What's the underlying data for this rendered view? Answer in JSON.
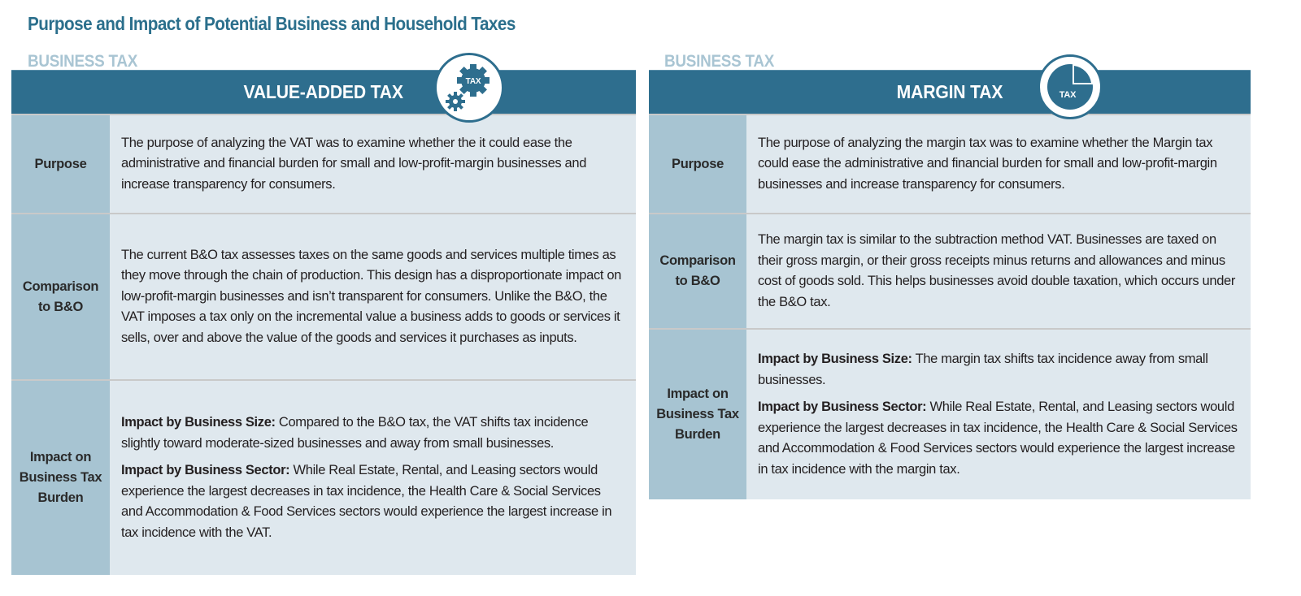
{
  "title": "Purpose and Impact of Potential Business and Household Taxes",
  "tables": [
    {
      "section": "BUSINESS TAX",
      "header": "VALUE-ADDED TAX",
      "icon_text": "TAX",
      "rows": [
        {
          "label": "Purpose",
          "text": "The purpose of analyzing the VAT was to examine whether the it could ease the administrative and financial burden for small and low-profit-margin businesses and increase transparency for consumers."
        },
        {
          "label": "Comparison to B&O",
          "text": "The current B&O tax assesses taxes on the same goods and services multiple times as they move through the chain of production. This design has a disproportionate impact on low-profit-margin businesses and isn’t transparent for consumers. Unlike the B&O, the VAT imposes a tax only on the incremental value a business adds to goods or services it sells, over and above the value of the goods and services it purchases as inputs."
        },
        {
          "label": "Impact on Business Tax Burden",
          "size_label": "Impact by Business Size:",
          "size_text": " Compared to the B&O tax, the VAT shifts tax incidence slightly toward moderate-sized businesses and away from small businesses.",
          "sector_label": "Impact by Business Sector:",
          "sector_text": " While Real Estate, Rental, and Leasing sectors would experience the largest decreases in tax incidence, the Health Care & Social Services and Accommodation & Food Services sectors would experience the largest increase in tax incidence with the VAT."
        }
      ]
    },
    {
      "section": "BUSINESS TAX",
      "header": "MARGIN TAX",
      "icon_text": "TAX",
      "rows": [
        {
          "label": "Purpose",
          "text": "The purpose of analyzing the margin tax was to examine whether the Margin tax could ease the administrative and financial burden for small and low-profit-margin businesses and increase transparency for consumers."
        },
        {
          "label": "Comparison to B&O",
          "text": "The margin tax is similar to the subtraction method VAT. Businesses are taxed on their gross margin, or their gross receipts minus returns and allowances and minus cost of goods sold. This helps businesses avoid double taxation, which occurs under the B&O tax."
        },
        {
          "label": "Impact on Business Tax Burden",
          "size_label": "Impact by Business Size:",
          "size_text": " The margin tax shifts tax incidence away from small businesses.",
          "sector_label": "Impact by Business Sector:",
          "sector_text": " While Real Estate, Rental, and Leasing sectors would experience the largest decreases in tax incidence, the Health Care & Social Services and Accommodation & Food Services sectors would experience the largest increase in tax incidence with the margin tax."
        }
      ]
    }
  ]
}
